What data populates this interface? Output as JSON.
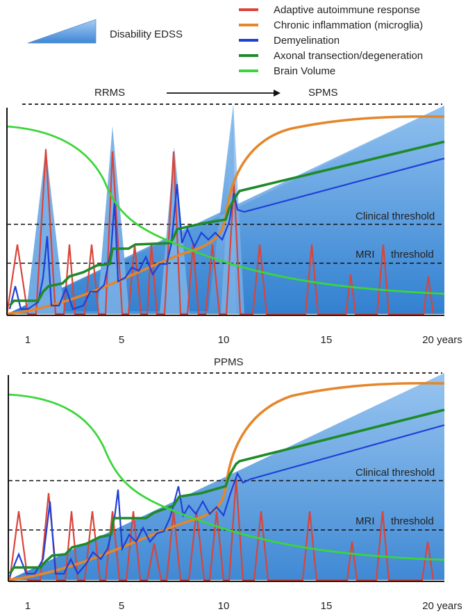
{
  "legend": {
    "disability": "Disability EDSS",
    "items": [
      {
        "key": "adaptive",
        "label": "Adaptive autoimmune response",
        "color": "#d9443a"
      },
      {
        "key": "chronic",
        "label": "Chronic inflammation (microglia)",
        "color": "#e5862a"
      },
      {
        "key": "demyelination",
        "label": "Demyelination",
        "color": "#1f3fd6"
      },
      {
        "key": "axonal",
        "label": "Axonal transection/degeneration",
        "color": "#1e8a2a"
      },
      {
        "key": "brain",
        "label": "Brain Volume",
        "color": "#3ad63a"
      }
    ]
  },
  "top_panel": {
    "phase_left": "RRMS",
    "phase_right": "SPMS",
    "clinical_threshold": "Clinical threshold",
    "mri_label": "MRI",
    "mri_threshold": "threshold",
    "x_ticks": [
      "1",
      "5",
      "10",
      "15",
      "20 years"
    ]
  },
  "bottom_panel": {
    "phase": "PPMS",
    "clinical_threshold": "Clinical threshold",
    "mri_label": "MRI",
    "mri_threshold": "threshold",
    "x_ticks": [
      "1",
      "5",
      "10",
      "15",
      "20 years"
    ]
  }
}
